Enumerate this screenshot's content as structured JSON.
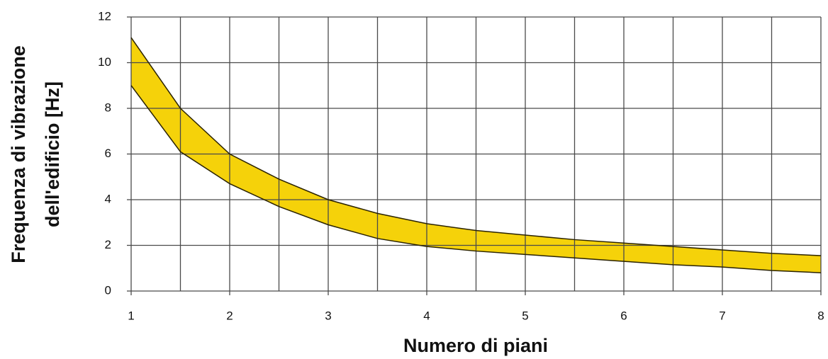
{
  "chart_data": {
    "type": "band",
    "xlabel": "Numero di piani",
    "ylabel": [
      "Frequenza di vibrazione",
      "dell'edificio [Hz]"
    ],
    "x": [
      1,
      1.5,
      2,
      2.5,
      3,
      3.5,
      4,
      4.5,
      5,
      5.5,
      6,
      6.5,
      7,
      7.5,
      8
    ],
    "upper": [
      11.1,
      8.0,
      6.0,
      4.9,
      4.0,
      3.4,
      2.95,
      2.65,
      2.45,
      2.25,
      2.1,
      1.95,
      1.8,
      1.65,
      1.55
    ],
    "lower": [
      9.0,
      6.1,
      4.7,
      3.7,
      2.9,
      2.3,
      1.95,
      1.75,
      1.6,
      1.45,
      1.3,
      1.15,
      1.05,
      0.9,
      0.8
    ],
    "color": "#f5d20a",
    "edge_color": "#2a2200",
    "xlim": [
      1,
      8
    ],
    "ylim": [
      0,
      12
    ],
    "xticks": [
      1,
      2,
      3,
      4,
      5,
      6,
      7,
      8
    ],
    "x_minor_gridlines": [
      1.5,
      2.5,
      3.5,
      4.5,
      5.5,
      6.5,
      7.5
    ],
    "yticks": [
      0,
      2,
      4,
      6,
      8,
      10,
      12
    ],
    "grid": true
  }
}
